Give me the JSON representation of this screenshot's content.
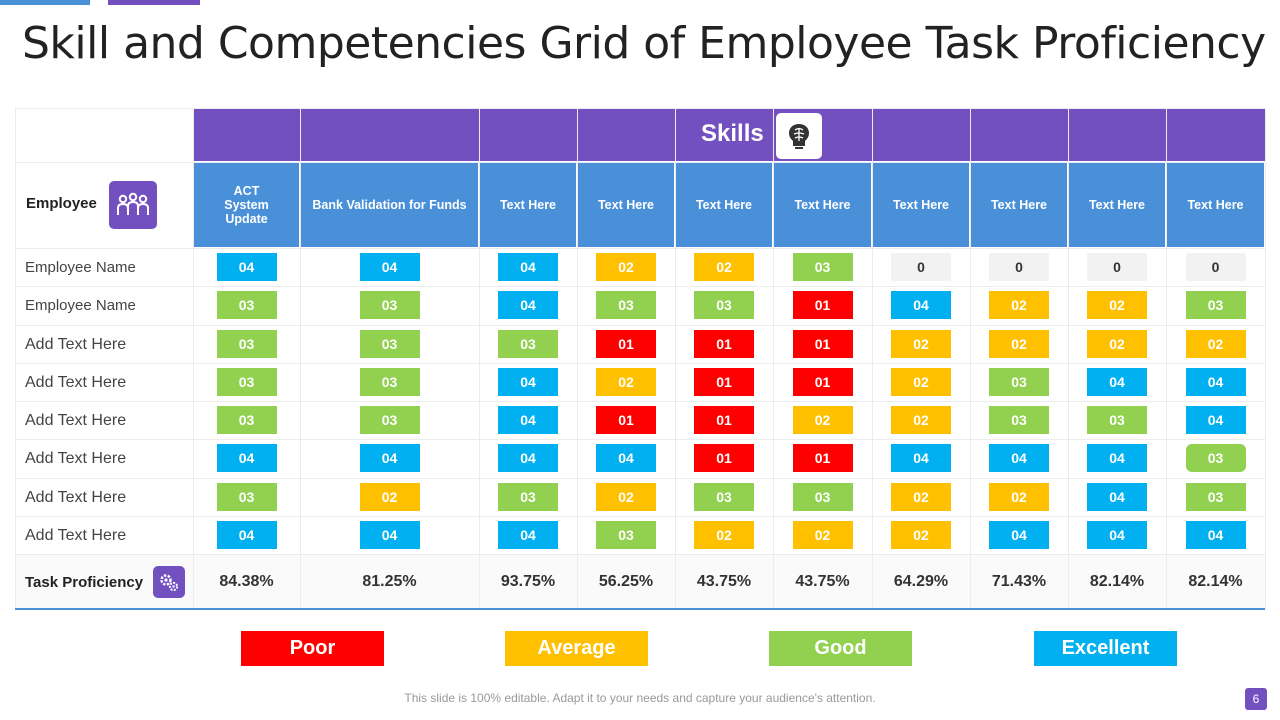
{
  "title": "Skill and Competencies Grid of Employee Task Proficiency",
  "skills_header": "Skills",
  "employee_header": "Employee",
  "columns": [
    "ACT System Update",
    "Bank Validation for Funds",
    "Text Here",
    "Text Here",
    "Text Here",
    "Text Here",
    "Text Here",
    "Text Here",
    "Text Here",
    "Text Here"
  ],
  "rows": [
    {
      "label": "Employee Name",
      "cells": [
        "04",
        "04",
        "04",
        "02",
        "02",
        "03",
        "0",
        "0",
        "0",
        "0"
      ]
    },
    {
      "label": "Employee Name",
      "cells": [
        "03",
        "03",
        "04",
        "03",
        "03",
        "01",
        "04",
        "02",
        "02",
        "03"
      ]
    },
    {
      "label": "Add Text Here",
      "cells": [
        "03",
        "03",
        "03",
        "01",
        "01",
        "01",
        "02",
        "02",
        "02",
        "02"
      ]
    },
    {
      "label": "Add Text Here",
      "cells": [
        "03",
        "03",
        "04",
        "02",
        "01",
        "01",
        "02",
        "03",
        "04",
        "04"
      ]
    },
    {
      "label": "Add Text Here",
      "cells": [
        "03",
        "03",
        "04",
        "01",
        "01",
        "02",
        "02",
        "03",
        "03",
        "04"
      ]
    },
    {
      "label": "Add Text Here",
      "cells": [
        "04",
        "04",
        "04",
        "04",
        "01",
        "01",
        "04",
        "04",
        "04",
        "03"
      ]
    },
    {
      "label": "Add Text Here",
      "cells": [
        "03",
        "02",
        "03",
        "02",
        "03",
        "03",
        "02",
        "02",
        "04",
        "03"
      ]
    },
    {
      "label": "Add Text Here",
      "cells": [
        "04",
        "04",
        "04",
        "03",
        "02",
        "02",
        "02",
        "04",
        "04",
        "04"
      ]
    }
  ],
  "task_proficiency": {
    "label": "Task Proficiency",
    "values": [
      "84.38%",
      "81.25%",
      "93.75%",
      "56.25%",
      "43.75%",
      "43.75%",
      "64.29%",
      "71.43%",
      "82.14%",
      "82.14%"
    ]
  },
  "legend": [
    {
      "label": "Poor",
      "color": "#ff0000"
    },
    {
      "label": "Average",
      "color": "#ffc000"
    },
    {
      "label": "Good",
      "color": "#92d050"
    },
    {
      "label": "Excellent",
      "color": "#00b0f0"
    }
  ],
  "level_colors": {
    "0": "#f2f2f2",
    "01": "#ff0000",
    "02": "#ffc000",
    "03": "#92d050",
    "04": "#00b0f0"
  },
  "footer": "This slide is 100% editable. Adapt it to your needs and capture your audience's attention.",
  "page_number": "6"
}
